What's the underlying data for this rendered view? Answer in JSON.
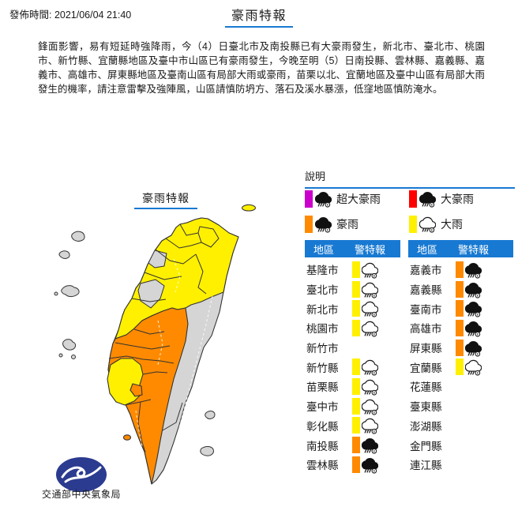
{
  "header": {
    "publish_time": "發佈時間: 2021/06/04 21:40",
    "title": "豪雨特報"
  },
  "advisory": "鋒面影響，易有短延時強降雨，今（4）日臺北市及南投縣已有大豪雨發生，新北市、臺北市、桃園市、新竹縣、宜蘭縣地區及臺中市山區已有豪雨發生，今晚至明（5）日南投縣、雲林縣、嘉義縣、嘉義市、高雄市、屏東縣地區及臺南山區有局部大雨或豪雨，苗栗以北、宜蘭地區及臺中山區有局部大雨發生的機率，請注意雷擊及強陣風，山區請慎防坍方、落石及溪水暴漲，低窪地區慎防淹水。",
  "map": {
    "title": "豪雨特報",
    "agency": "交通部中央氣象局",
    "region_levels": {
      "north_taiwan": "大雨",
      "central_south_west": "豪雨",
      "east_taiwan": "無特報",
      "southwest_plain_enclave": "大雨",
      "offshore_islands": "無特報",
      "northeast_islet": "大雨"
    }
  },
  "legend": {
    "heading": "說明",
    "items": [
      {
        "label": "超大豪雨",
        "color": "#CC00CC",
        "icon": "dark-rain-cloud-icon"
      },
      {
        "label": "大豪雨",
        "color": "#FF0000",
        "icon": "dark-rain-cloud-icon"
      },
      {
        "label": "豪雨",
        "color": "#FF8A00",
        "icon": "dark-rain-cloud-icon"
      },
      {
        "label": "大雨",
        "color": "#FFF000",
        "icon": "light-rain-cloud-icon"
      }
    ]
  },
  "tables": {
    "headers": {
      "region": "地區",
      "warning": "警特報"
    },
    "left": [
      {
        "name": "基隆市",
        "warning": "大雨"
      },
      {
        "name": "臺北市",
        "warning": "大雨"
      },
      {
        "name": "新北市",
        "warning": "大雨"
      },
      {
        "name": "桃園市",
        "warning": "大雨"
      },
      {
        "name": "新竹市",
        "warning": ""
      },
      {
        "name": "新竹縣",
        "warning": "大雨"
      },
      {
        "name": "苗栗縣",
        "warning": "大雨"
      },
      {
        "name": "臺中市",
        "warning": "大雨"
      },
      {
        "name": "彰化縣",
        "warning": "大雨"
      },
      {
        "name": "南投縣",
        "warning": "豪雨"
      },
      {
        "name": "雲林縣",
        "warning": "豪雨"
      }
    ],
    "right": [
      {
        "name": "嘉義市",
        "warning": "豪雨"
      },
      {
        "name": "嘉義縣",
        "warning": "豪雨"
      },
      {
        "name": "臺南市",
        "warning": "豪雨"
      },
      {
        "name": "高雄市",
        "warning": "豪雨"
      },
      {
        "name": "屏東縣",
        "warning": "豪雨"
      },
      {
        "name": "宜蘭縣",
        "warning": "大雨"
      },
      {
        "name": "花蓮縣",
        "warning": ""
      },
      {
        "name": "臺東縣",
        "warning": ""
      },
      {
        "name": "澎湖縣",
        "warning": ""
      },
      {
        "name": "金門縣",
        "warning": ""
      },
      {
        "name": "連江縣",
        "warning": ""
      }
    ]
  },
  "colors": {
    "accent_blue": "#1879D2",
    "extra_torrential_magenta": "#CC00CC",
    "torrential_red": "#FF0000",
    "extremely_heavy_orange": "#FF8A00",
    "heavy_yellow": "#FFF000",
    "map_no_warning_gray": "#D5D5D5",
    "logo_navy": "#2B3B8F"
  }
}
